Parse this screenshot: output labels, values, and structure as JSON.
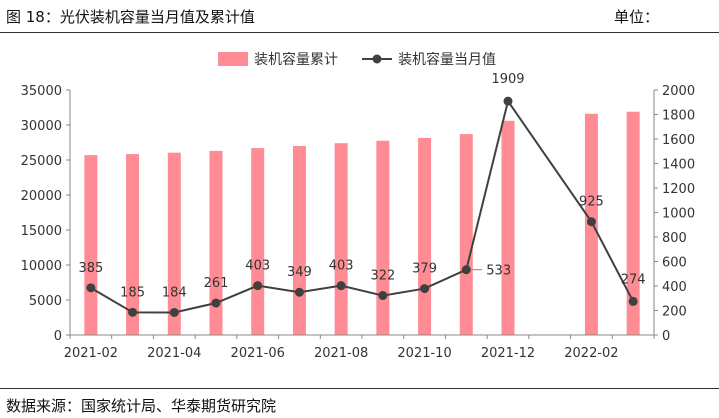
{
  "header": {
    "title": "图 18：光伏装机容量当月值及累计值",
    "unit": "单位："
  },
  "footer": {
    "source": "数据来源：国家统计局、华泰期货研究院"
  },
  "colors": {
    "bar": "#ff8c94",
    "line": "#404040",
    "axis": "#888888",
    "text": "#333333"
  },
  "chart_data": {
    "type": "bar",
    "categories": [
      "2021-02",
      "2021-03",
      "2021-04",
      "2021-05",
      "2021-06",
      "2021-07",
      "2021-08",
      "2021-09",
      "2021-10",
      "2021-11",
      "2021-12",
      "2022-01",
      "2022-02",
      "2022-03"
    ],
    "x_tick_labels": [
      "2021-02",
      "2021-04",
      "2021-06",
      "2021-08",
      "2021-10",
      "2021-12",
      "2022-02"
    ],
    "series": [
      {
        "name": "装机容量累计",
        "type": "bar",
        "axis": "left",
        "values": [
          25700,
          25850,
          26050,
          26300,
          26700,
          27000,
          27400,
          27750,
          28150,
          28700,
          30600,
          null,
          31600,
          31900
        ]
      },
      {
        "name": "装机容量当月值",
        "type": "line",
        "axis": "right",
        "values": [
          385,
          185,
          184,
          261,
          403,
          349,
          403,
          322,
          379,
          533,
          1909,
          null,
          925,
          274
        ]
      }
    ],
    "y_left": {
      "ylim": [
        0,
        35000
      ],
      "ticks": [
        "0",
        "5000",
        "10000",
        "15000",
        "20000",
        "25000",
        "30000",
        "35000"
      ]
    },
    "y_right": {
      "ylim": [
        0,
        2000
      ],
      "ticks": [
        "0",
        "200",
        "400",
        "600",
        "800",
        "1000",
        "1200",
        "1400",
        "1600",
        "1800",
        "2000"
      ]
    },
    "legend": "top-center",
    "grid": false
  }
}
